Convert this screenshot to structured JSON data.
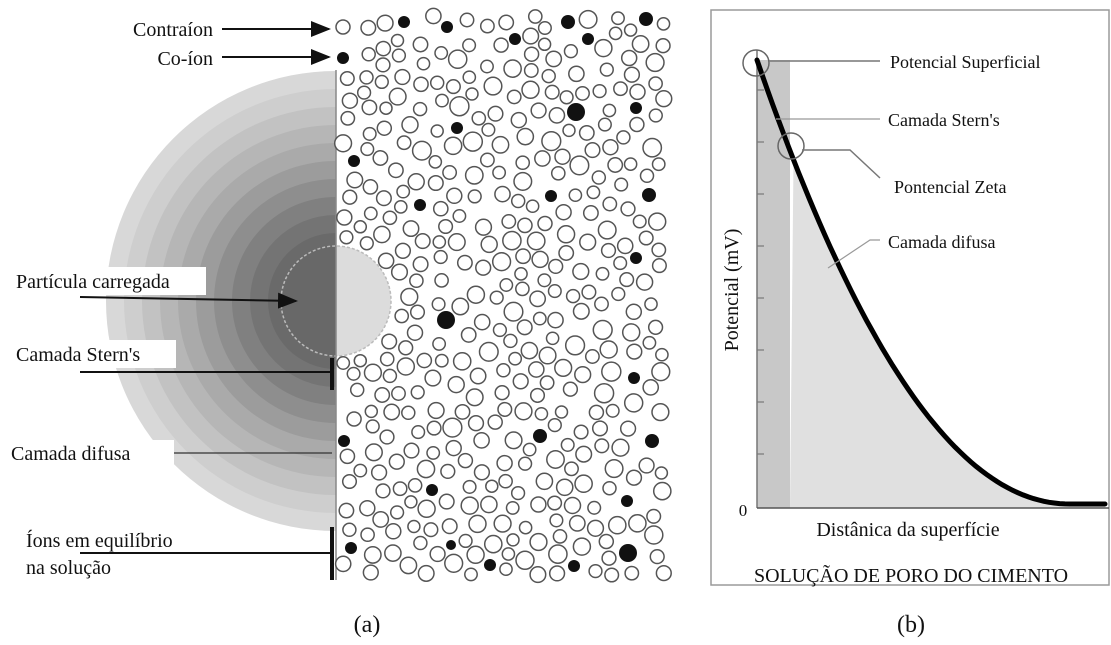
{
  "panel_a": {
    "labels": {
      "counterion": "Contraíon",
      "coion": "Co-íon",
      "charged_particle": "Partícula carregada",
      "stern_layer": "Camada Stern's",
      "diffuse_layer": "Camada difusa",
      "equilibrium_line1": "Íons em equilíbrio",
      "equilibrium_line2": "na solução"
    },
    "caption": "(a)"
  },
  "panel_b": {
    "labels": {
      "surface_potential": "Potencial Superficial",
      "stern_layer": "Camada Stern's",
      "zeta_potential": "Pontencial Zeta",
      "diffuse_layer": "Camada difusa"
    },
    "chart_data": {
      "type": "line",
      "ylabel": "Potencial (mV)",
      "xlabel": "Distânica da superfície",
      "subtitle": "SOLUÇÃO DE PORO DO CIMENTO",
      "y_tick_label": "0"
    },
    "caption": "(b)"
  },
  "colors": {
    "ion_filled": "#111111",
    "ion_open_stroke": "#555555",
    "stern_band": "#c8c8c8",
    "diffuse_area": "#e0e0e0",
    "particle_right": "#dcdcdc"
  }
}
